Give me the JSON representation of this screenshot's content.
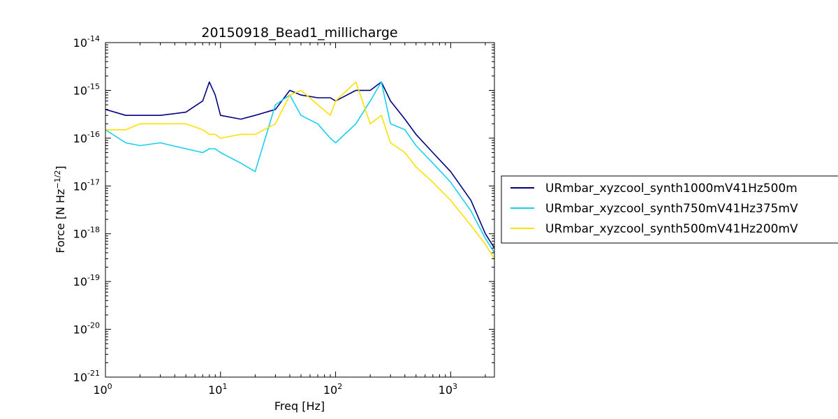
{
  "chart_data": {
    "type": "line",
    "title": "20150918_Bead1_millicharge",
    "xlabel": "Freq [Hz]",
    "ylabel": "Force [N Hz",
    "ylabel_exp": "−1/2",
    "ylabel_end": "]",
    "x_scale": "log",
    "y_scale": "log",
    "xlim": [
      1,
      2400
    ],
    "ylim": [
      1e-21,
      1e-14
    ],
    "grid": false,
    "legend_position": "right, outside plot",
    "x_ticks": [
      {
        "value": 1,
        "base": "10",
        "exp": "0"
      },
      {
        "value": 10,
        "base": "10",
        "exp": "1"
      },
      {
        "value": 100,
        "base": "10",
        "exp": "2"
      },
      {
        "value": 1000,
        "base": "10",
        "exp": "3"
      }
    ],
    "y_ticks": [
      {
        "value": 1e-21,
        "base": "10",
        "exp": "-21"
      },
      {
        "value": 1e-20,
        "base": "10",
        "exp": "-20"
      },
      {
        "value": 1e-19,
        "base": "10",
        "exp": "-19"
      },
      {
        "value": 1e-18,
        "base": "10",
        "exp": "-18"
      },
      {
        "value": 1e-17,
        "base": "10",
        "exp": "-17"
      },
      {
        "value": 1e-16,
        "base": "10",
        "exp": "-16"
      },
      {
        "value": 1e-15,
        "base": "10",
        "exp": "-15"
      },
      {
        "value": 1e-14,
        "base": "10",
        "exp": "-14"
      }
    ],
    "series": [
      {
        "name": "URmbar_xyzcool_synth1000mV41Hz500m",
        "color": "#000080",
        "x": [
          1,
          1.5,
          2,
          3,
          5,
          7,
          8,
          9,
          10,
          15,
          20,
          30,
          40,
          50,
          70,
          90,
          100,
          150,
          200,
          250,
          300,
          400,
          500,
          700,
          1000,
          1500,
          2000,
          2400
        ],
        "y": [
          4e-16,
          3e-16,
          3e-16,
          3e-16,
          3.5e-16,
          6e-16,
          1.5e-15,
          8e-16,
          3e-16,
          2.5e-16,
          3e-16,
          4e-16,
          1e-15,
          8e-16,
          7e-16,
          7e-16,
          6e-16,
          1e-15,
          1e-15,
          1.5e-15,
          6e-16,
          2.5e-16,
          1.2e-16,
          5e-17,
          2e-17,
          5e-18,
          1e-18,
          5e-19
        ]
      },
      {
        "name": "URmbar_xyzcool_synth750mV41Hz375mV",
        "color": "#17d0f0",
        "x": [
          1,
          1.5,
          2,
          3,
          5,
          7,
          8,
          9,
          10,
          15,
          20,
          30,
          40,
          50,
          70,
          90,
          100,
          150,
          200,
          250,
          300,
          400,
          500,
          700,
          1000,
          1500,
          2000,
          2400
        ],
        "y": [
          1.5e-16,
          8e-17,
          7e-17,
          8e-17,
          6e-17,
          5e-17,
          6e-17,
          6e-17,
          5e-17,
          3e-17,
          2e-17,
          5e-16,
          8e-16,
          3e-16,
          2e-16,
          1e-16,
          8e-17,
          2e-16,
          6e-16,
          1.5e-15,
          2e-16,
          1.5e-16,
          7e-17,
          3e-17,
          1.2e-17,
          3e-18,
          8e-19,
          4e-19
        ]
      },
      {
        "name": "URmbar_xyzcool_synth500mV41Hz200mV",
        "color": "#ffe000",
        "x": [
          1,
          1.5,
          2,
          3,
          5,
          7,
          8,
          9,
          10,
          15,
          20,
          30,
          40,
          50,
          70,
          90,
          100,
          150,
          200,
          250,
          300,
          400,
          500,
          700,
          1000,
          1500,
          2000,
          2400
        ],
        "y": [
          1.5e-16,
          1.5e-16,
          2e-16,
          2e-16,
          2e-16,
          1.5e-16,
          1.2e-16,
          1.2e-16,
          1e-16,
          1.2e-16,
          1.2e-16,
          2e-16,
          8e-16,
          1e-15,
          5e-16,
          3e-16,
          6e-16,
          1.5e-15,
          2e-16,
          3e-16,
          8e-17,
          5e-17,
          2.5e-17,
          1.2e-17,
          5e-18,
          1.5e-18,
          6e-19,
          3e-19
        ]
      }
    ]
  }
}
